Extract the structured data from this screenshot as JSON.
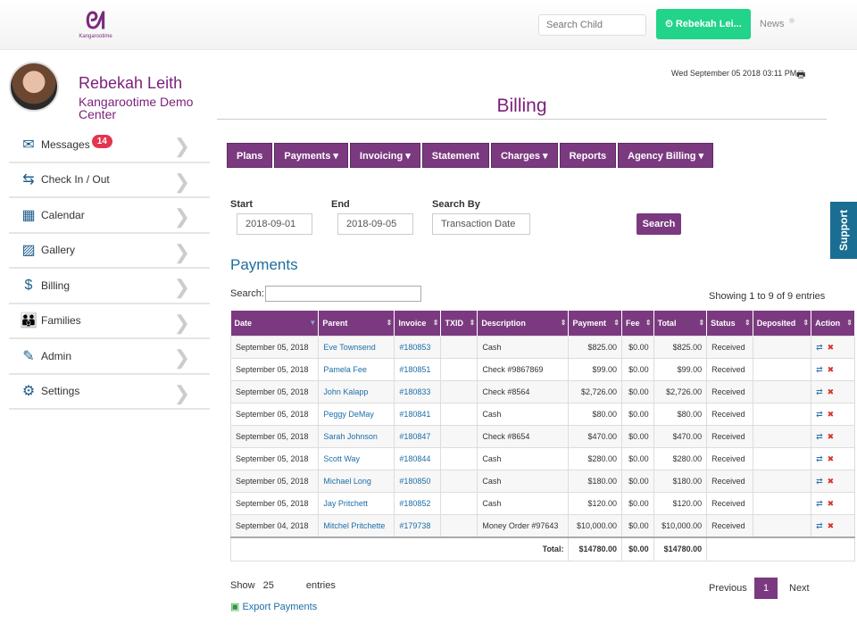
{
  "header": {
    "logo_text": "Kangarootime",
    "search_placeholder": "Search Child",
    "user_button": "⏲ Rebekah Lei...",
    "news": "News"
  },
  "profile": {
    "name": "Rebekah Leith",
    "center": "Kangarootime Demo Center"
  },
  "sidebar": {
    "items": [
      {
        "label": "Messages",
        "icon": "envelope-icon",
        "badge": "14"
      },
      {
        "label": "Check In / Out",
        "icon": "signpost-icon"
      },
      {
        "label": "Calendar",
        "icon": "calendar-icon"
      },
      {
        "label": "Gallery",
        "icon": "image-icon"
      },
      {
        "label": "Billing",
        "icon": "billing-icon"
      },
      {
        "label": "Families",
        "icon": "family-icon"
      },
      {
        "label": "Admin",
        "icon": "edit-icon"
      },
      {
        "label": "Settings",
        "icon": "gear-icon"
      }
    ]
  },
  "datetime": "Wed September 05 2018 03:11 PM",
  "page_title": "Billing",
  "tabs": [
    "Plans",
    "Payments ▾",
    "Invoicing ▾",
    "Statement",
    "Charges ▾",
    "Reports",
    "Agency Billing ▾"
  ],
  "filters": {
    "start_label": "Start",
    "start": "2018-09-01",
    "end_label": "End",
    "end": "2018-09-05",
    "searchby_label": "Search By",
    "searchby": "Transaction Date",
    "search_button": "Search"
  },
  "support": "Support",
  "payments": {
    "title": "Payments",
    "search_label": "Search:",
    "showing": "Showing 1 to 9 of 9 entries",
    "columns": [
      "Date",
      "Parent",
      "Invoice",
      "TXID",
      "Description",
      "Payment",
      "Fee",
      "Total",
      "Status",
      "Deposited",
      "Action"
    ],
    "rows": [
      [
        "September 05, 2018",
        "Eve Townsend",
        "#180853",
        "",
        "Cash",
        "$825.00",
        "$0.00",
        "$825.00",
        "Received",
        ""
      ],
      [
        "September 05, 2018",
        "Pamela Fee",
        "#180851",
        "",
        "Check #9867869",
        "$99.00",
        "$0.00",
        "$99.00",
        "Received",
        ""
      ],
      [
        "September 05, 2018",
        "John Kalapp",
        "#180833",
        "",
        "Check #8564",
        "$2,726.00",
        "$0.00",
        "$2,726.00",
        "Received",
        ""
      ],
      [
        "September 05, 2018",
        "Peggy DeMay",
        "#180841",
        "",
        "Cash",
        "$80.00",
        "$0.00",
        "$80.00",
        "Received",
        ""
      ],
      [
        "September 05, 2018",
        "Sarah Johnson",
        "#180847",
        "",
        "Check #8654",
        "$470.00",
        "$0.00",
        "$470.00",
        "Received",
        ""
      ],
      [
        "September 05, 2018",
        "Scott Way",
        "#180844",
        "",
        "Cash",
        "$280.00",
        "$0.00",
        "$280.00",
        "Received",
        ""
      ],
      [
        "September 05, 2018",
        "Michael Long",
        "#180850",
        "",
        "Cash",
        "$180.00",
        "$0.00",
        "$180.00",
        "Received",
        ""
      ],
      [
        "September 05, 2018",
        "Jay Pritchett",
        "#180852",
        "",
        "Cash",
        "$120.00",
        "$0.00",
        "$120.00",
        "Received",
        ""
      ],
      [
        "September 04, 2018",
        "Mitchel Pritchette",
        "#179738",
        "",
        "Money Order #97643",
        "$10,000.00",
        "$0.00",
        "$10,000.00",
        "Received",
        ""
      ]
    ],
    "total_label": "Total:",
    "total_payment": "$14780.00",
    "total_fee": "$0.00",
    "total_total": "$14780.00",
    "show_label": "Show",
    "show_value": "25",
    "entries_label": "entries",
    "prev": "Previous",
    "page": "1",
    "next": "Next",
    "export": "Export Payments"
  }
}
